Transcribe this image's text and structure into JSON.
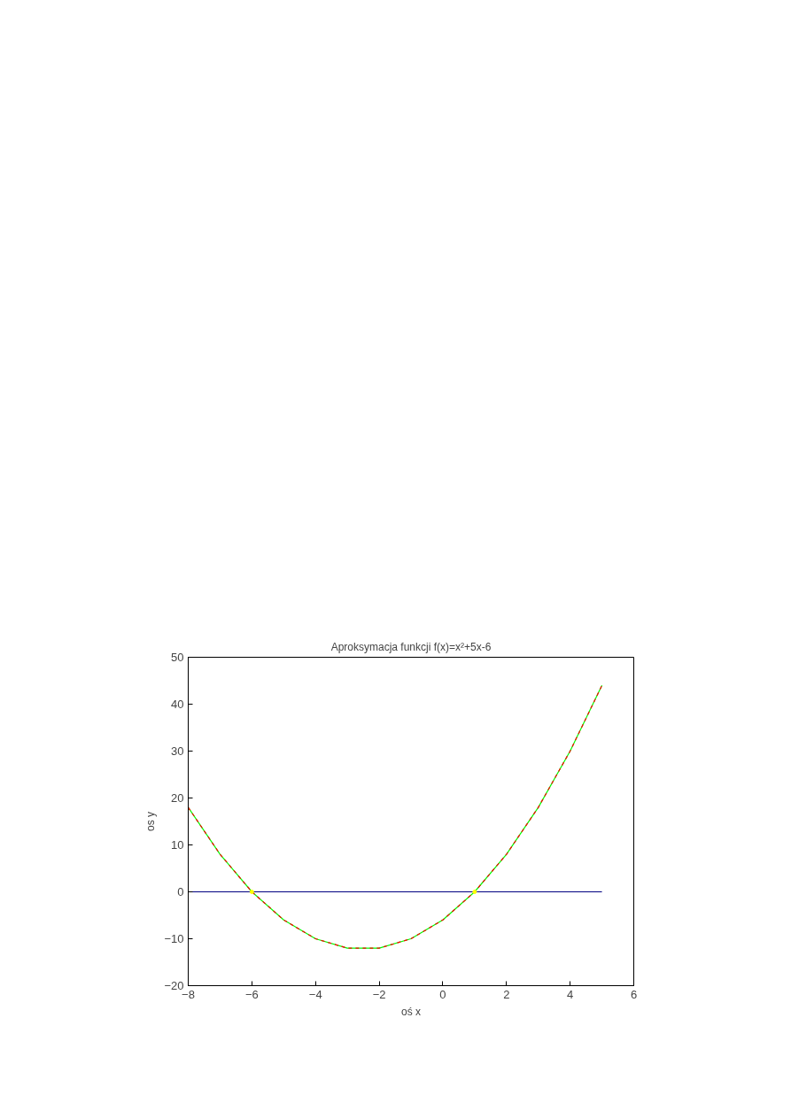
{
  "chart_data": {
    "type": "line",
    "title": "Aproksymacja funkcji f(x)=x²+5x-6",
    "xlabel": "oś x",
    "ylabel": "os y",
    "x": [
      -8,
      -7,
      -6,
      -5,
      -4,
      -3,
      -2,
      -1,
      0,
      1,
      2,
      3,
      4,
      5
    ],
    "series": [
      {
        "color": "#00ff00",
        "values": [
          18,
          8,
          0,
          -6,
          -10,
          -12,
          -12,
          -10,
          -6,
          0,
          8,
          18,
          30,
          44
        ],
        "line_style": "solid"
      },
      {
        "color": "#ff0000",
        "values": [
          18,
          8,
          0,
          -6,
          -10,
          -12,
          -12,
          -10,
          -6,
          0,
          8,
          18,
          30,
          44
        ],
        "line_style": "dashed"
      },
      {
        "color": "#000080",
        "x": [
          -8,
          5
        ],
        "values": [
          0,
          0
        ],
        "line_style": "solid"
      },
      {
        "type": "scatter",
        "color": "#ffff00",
        "x": [
          -6,
          1
        ],
        "values": [
          0,
          0
        ],
        "marker": "circle"
      }
    ],
    "xlim": [
      -8,
      6
    ],
    "ylim": [
      -20,
      50
    ],
    "xticks": [
      -8,
      -6,
      -4,
      -2,
      0,
      2,
      4,
      6
    ],
    "yticks": [
      -20,
      -10,
      0,
      10,
      20,
      30,
      40,
      50
    ],
    "grid": false
  }
}
